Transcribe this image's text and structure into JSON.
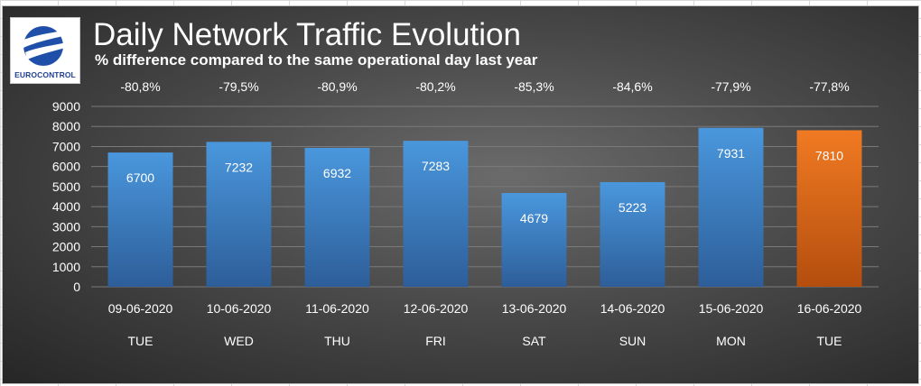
{
  "header": {
    "title": "Daily Network Traffic Evolution",
    "subtitle": "% difference compared to the same operational day last year",
    "logo_text": "EUROCONTROL"
  },
  "colors": {
    "bar_default": "#3f86c9",
    "bar_highlight": "#e8711f",
    "gridline": "#7a7a7a"
  },
  "chart_data": {
    "type": "bar",
    "title": "Daily Network Traffic Evolution",
    "subtitle": "% difference compared to the same operational day last year",
    "categories": [
      "09-06-2020",
      "10-06-2020",
      "11-06-2020",
      "12-06-2020",
      "13-06-2020",
      "14-06-2020",
      "15-06-2020",
      "16-06-2020"
    ],
    "weekdays": [
      "TUE",
      "WED",
      "THU",
      "FRI",
      "SAT",
      "SUN",
      "MON",
      "TUE"
    ],
    "values": [
      6700,
      7232,
      6932,
      7283,
      4679,
      5223,
      7931,
      7810
    ],
    "pct_change": [
      "-80,8%",
      "-79,5%",
      "-80,9%",
      "-80,2%",
      "-85,3%",
      "-84,6%",
      "-77,9%",
      "-77,8%"
    ],
    "highlight_index": 7,
    "ylim": [
      0,
      9000
    ],
    "yticks": [
      0,
      1000,
      2000,
      3000,
      4000,
      5000,
      6000,
      7000,
      8000,
      9000
    ],
    "grid": true,
    "xlabel": "",
    "ylabel": ""
  }
}
